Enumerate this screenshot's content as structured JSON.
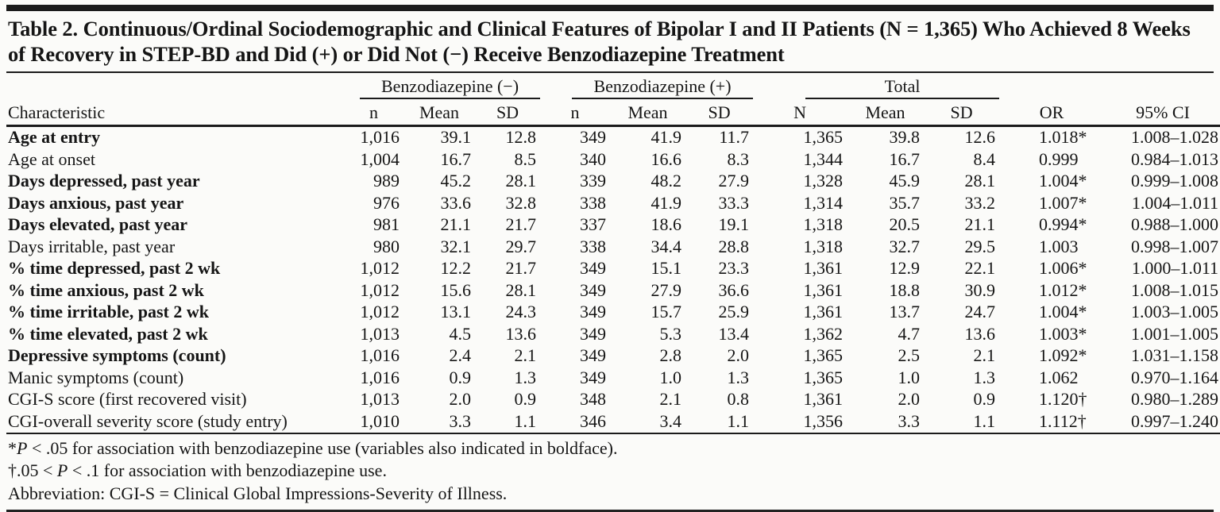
{
  "colors": {
    "ink": "#1b1b1b",
    "background": "#fbfbf9"
  },
  "title": {
    "line1": "Table 2. Continuous/Ordinal Sociodemographic and Clinical Features of Bipolar I and II Patients (N = 1,365) Who Achieved 8 Weeks",
    "line2": "of Recovery in STEP-BD and Did (+) or Did Not (−) Receive Benzodiazepine Treatment"
  },
  "table": {
    "columns": {
      "characteristic": "Characteristic",
      "groups": [
        {
          "label": "Benzodiazepine (−)",
          "sub": [
            "n",
            "Mean",
            "SD"
          ]
        },
        {
          "label": "Benzodiazepine (+)",
          "sub": [
            "n",
            "Mean",
            "SD"
          ]
        },
        {
          "label": "Total",
          "sub": [
            "N",
            "Mean",
            "SD"
          ]
        }
      ],
      "or": "OR",
      "ci": "95% CI"
    },
    "rows": [
      {
        "characteristic": "Age at entry",
        "bold": true,
        "values": [
          "1,016",
          "39.1",
          "12.8",
          "349",
          "41.9",
          "11.7",
          "1,365",
          "39.8",
          "12.6"
        ],
        "or": "1.018*",
        "ci": "1.008–1.028"
      },
      {
        "characteristic": "Age at onset",
        "bold": false,
        "values": [
          "1,004",
          "16.7",
          "8.5",
          "340",
          "16.6",
          "8.3",
          "1,344",
          "16.7",
          "8.4"
        ],
        "or": "0.999",
        "ci": "0.984–1.013"
      },
      {
        "characteristic": "Days depressed, past year",
        "bold": true,
        "values": [
          "989",
          "45.2",
          "28.1",
          "339",
          "48.2",
          "27.9",
          "1,328",
          "45.9",
          "28.1"
        ],
        "or": "1.004*",
        "ci": "0.999–1.008"
      },
      {
        "characteristic": "Days anxious, past year",
        "bold": true,
        "values": [
          "976",
          "33.6",
          "32.8",
          "338",
          "41.9",
          "33.3",
          "1,314",
          "35.7",
          "33.2"
        ],
        "or": "1.007*",
        "ci": "1.004–1.011"
      },
      {
        "characteristic": "Days elevated, past year",
        "bold": true,
        "values": [
          "981",
          "21.1",
          "21.7",
          "337",
          "18.6",
          "19.1",
          "1,318",
          "20.5",
          "21.1"
        ],
        "or": "0.994*",
        "ci": "0.988–1.000"
      },
      {
        "characteristic": "Days irritable, past year",
        "bold": false,
        "values": [
          "980",
          "32.1",
          "29.7",
          "338",
          "34.4",
          "28.8",
          "1,318",
          "32.7",
          "29.5"
        ],
        "or": "1.003",
        "ci": "0.998–1.007"
      },
      {
        "characteristic": "% time depressed, past 2 wk",
        "bold": true,
        "values": [
          "1,012",
          "12.2",
          "21.7",
          "349",
          "15.1",
          "23.3",
          "1,361",
          "12.9",
          "22.1"
        ],
        "or": "1.006*",
        "ci": "1.000–1.011"
      },
      {
        "characteristic": "% time anxious, past 2 wk",
        "bold": true,
        "values": [
          "1,012",
          "15.6",
          "28.1",
          "349",
          "27.9",
          "36.6",
          "1,361",
          "18.8",
          "30.9"
        ],
        "or": "1.012*",
        "ci": "1.008–1.015"
      },
      {
        "characteristic": "% time irritable, past 2 wk",
        "bold": true,
        "values": [
          "1,012",
          "13.1",
          "24.3",
          "349",
          "15.7",
          "25.9",
          "1,361",
          "13.7",
          "24.7"
        ],
        "or": "1.004*",
        "ci": "1.003–1.005"
      },
      {
        "characteristic": "% time elevated, past 2 wk",
        "bold": true,
        "values": [
          "1,013",
          "4.5",
          "13.6",
          "349",
          "5.3",
          "13.4",
          "1,362",
          "4.7",
          "13.6"
        ],
        "or": "1.003*",
        "ci": "1.001–1.005"
      },
      {
        "characteristic": "Depressive symptoms (count)",
        "bold": true,
        "values": [
          "1,016",
          "2.4",
          "2.1",
          "349",
          "2.8",
          "2.0",
          "1,365",
          "2.5",
          "2.1"
        ],
        "or": "1.092*",
        "ci": "1.031–1.158"
      },
      {
        "characteristic": "Manic symptoms (count)",
        "bold": false,
        "values": [
          "1,016",
          "0.9",
          "1.3",
          "349",
          "1.0",
          "1.3",
          "1,365",
          "1.0",
          "1.3"
        ],
        "or": "1.062",
        "ci": "0.970–1.164"
      },
      {
        "characteristic": "CGI-S score (first recovered visit)",
        "bold": false,
        "values": [
          "1,013",
          "2.0",
          "0.9",
          "348",
          "2.1",
          "0.8",
          "1,361",
          "2.0",
          "0.9"
        ],
        "or": "1.120†",
        "ci": "0.980–1.289"
      },
      {
        "characteristic": "CGI-overall severity score (study entry)",
        "bold": false,
        "values": [
          "1,010",
          "3.3",
          "1.1",
          "346",
          "3.4",
          "1.1",
          "1,356",
          "3.3",
          "1.1"
        ],
        "or": "1.112†",
        "ci": "0.997–1.240"
      }
    ]
  },
  "footnotes": [
    {
      "segments": [
        {
          "t": "*"
        },
        {
          "t": "P",
          "i": true
        },
        {
          "t": " < .05 for association with benzodiazepine use (variables also indicated in boldface)."
        }
      ]
    },
    {
      "segments": [
        {
          "t": "†.05 < "
        },
        {
          "t": "P",
          "i": true
        },
        {
          "t": " < .1 for association with benzodiazepine use."
        }
      ]
    },
    {
      "segments": [
        {
          "t": "Abbreviation: CGI-S = Clinical Global Impressions-Severity of Illness."
        }
      ]
    }
  ]
}
